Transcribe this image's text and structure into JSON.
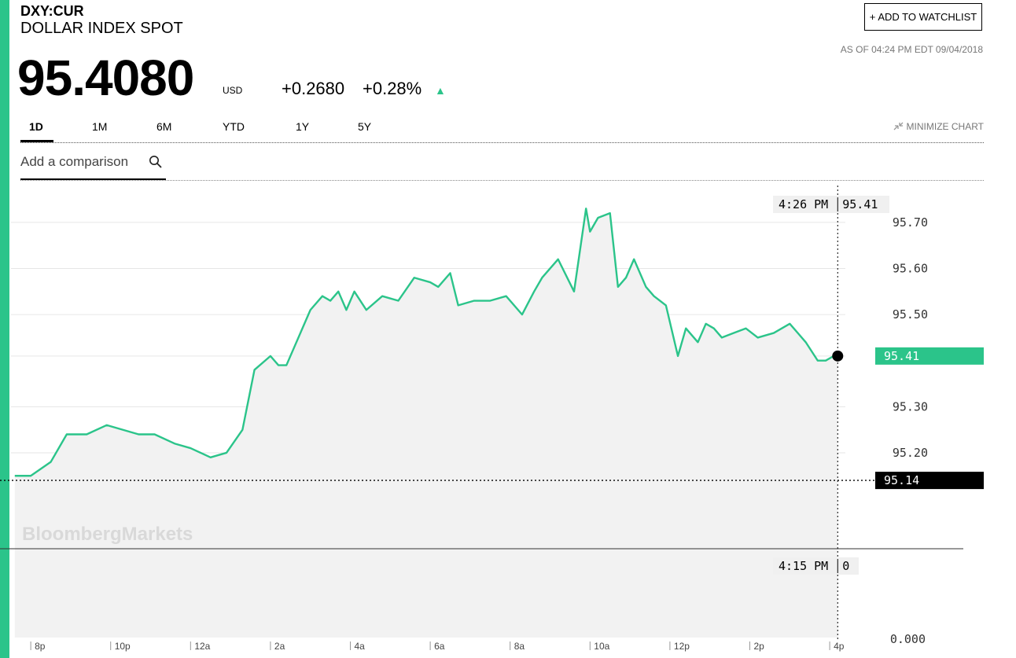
{
  "header": {
    "ticker": "DXY:CUR",
    "name": "DOLLAR INDEX SPOT",
    "price": "95.4080",
    "currency": "USD",
    "change": "+0.2680",
    "change_pct": "+0.28%",
    "watchlist_plus": "+",
    "watchlist_label": "ADD TO WATCHLIST",
    "as_of": "AS OF 04:24 PM EDT 09/04/2018"
  },
  "tabs": [
    "1D",
    "1M",
    "6M",
    "YTD",
    "1Y",
    "5Y"
  ],
  "minimize_label": "MINIMIZE CHART",
  "compare": {
    "label": "Add a comparison"
  },
  "colors": {
    "accent": "#2bc48a",
    "area": "#f2f2f2",
    "grid": "#e6e6e6"
  },
  "icons": {
    "up": "triangle-up-icon",
    "search": "search-icon",
    "minimize": "minimize-arrows-icon",
    "plus": "plus-icon"
  },
  "chart_data": {
    "type": "area",
    "watermark": "BloombergMarkets",
    "y_ticks": [
      95.2,
      95.3,
      95.5,
      95.6,
      95.7
    ],
    "y_tick_labels": [
      "95.20",
      "95.30",
      "95.50",
      "95.60",
      "95.70"
    ],
    "ylim": [
      95.06,
      95.78
    ],
    "x_ticks": [
      "8p",
      "10p",
      "12a",
      "2a",
      "4a",
      "6a",
      "8a",
      "10a",
      "12p",
      "2p",
      "4p"
    ],
    "x_tick_hours": [
      20,
      22,
      24,
      26,
      28,
      30,
      32,
      34,
      36,
      38,
      40
    ],
    "xlim_hours": [
      19.23,
      41.12
    ],
    "series": [
      {
        "x_hours": [
          19.6,
          20.0,
          20.5,
          20.9,
          21.4,
          21.9,
          22.3,
          22.7,
          23.1,
          23.6,
          24.0,
          24.5,
          24.9,
          25.3,
          25.6,
          26.0,
          26.2,
          26.4,
          26.7,
          27.0,
          27.3,
          27.5,
          27.7,
          27.9,
          28.1,
          28.4,
          28.8,
          29.2,
          29.6,
          30.0,
          30.2,
          30.5,
          30.7,
          31.1,
          31.5,
          31.9,
          32.3,
          32.6,
          32.8,
          33.2,
          33.6,
          33.9,
          34.0,
          34.2,
          34.5,
          34.7,
          34.9,
          35.1,
          35.4,
          35.6,
          35.9,
          36.2,
          36.4,
          36.7,
          36.9,
          37.1,
          37.3,
          37.6,
          37.9,
          38.2,
          38.6,
          39.0,
          39.4,
          39.7,
          39.9,
          40.1,
          40.2
        ],
        "y": [
          95.15,
          95.15,
          95.18,
          95.24,
          95.24,
          95.26,
          95.25,
          95.24,
          95.24,
          95.22,
          95.21,
          95.19,
          95.2,
          95.25,
          95.38,
          95.41,
          95.39,
          95.39,
          95.45,
          95.51,
          95.54,
          95.53,
          95.55,
          95.51,
          95.55,
          95.51,
          95.54,
          95.53,
          95.58,
          95.57,
          95.56,
          95.59,
          95.52,
          95.53,
          95.53,
          95.54,
          95.5,
          95.55,
          95.58,
          95.62,
          95.55,
          95.73,
          95.68,
          95.71,
          95.72,
          95.56,
          95.58,
          95.62,
          95.56,
          95.54,
          95.52,
          95.41,
          95.47,
          95.44,
          95.48,
          95.47,
          95.45,
          95.46,
          95.47,
          95.45,
          95.46,
          95.48,
          95.44,
          95.4,
          95.4,
          95.41,
          95.41
        ]
      }
    ],
    "previous_close": {
      "value": 95.14,
      "label": "95.14"
    },
    "last": {
      "value": 95.41,
      "label": "95.41"
    },
    "crosshair": {
      "time_label": "4:26 PM",
      "value_label": "95.41",
      "hour": 40.2
    },
    "volume": {
      "time_label": "4:15 PM",
      "value_label": "0",
      "axis_label": "0.000",
      "cutoff_hour": 40.2
    }
  }
}
